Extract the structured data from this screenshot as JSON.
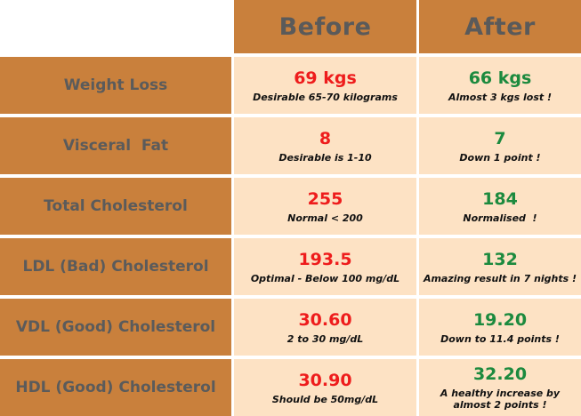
{
  "header": {
    "before": "Before",
    "after": "After"
  },
  "colors": {
    "header_bg": "#c9803c",
    "cell_bg": "#fde2c4",
    "before_value": "#ee1c1c",
    "after_value": "#1c8a3e",
    "label_text": "#5b5b5b"
  },
  "rows": [
    {
      "label": "Weight Loss",
      "before": {
        "value": "69 kgs",
        "note": "Desirable 65-70 kilograms"
      },
      "after": {
        "value": "66 kgs",
        "note": "Almost 3 kgs lost !"
      }
    },
    {
      "label": "Visceral  Fat",
      "before": {
        "value": "8",
        "note": "Desirable is 1-10"
      },
      "after": {
        "value": "7",
        "note": "Down 1 point !"
      }
    },
    {
      "label": "Total Cholesterol",
      "before": {
        "value": "255",
        "note": "Normal < 200"
      },
      "after": {
        "value": "184",
        "note": "Normalised  !"
      }
    },
    {
      "label": "LDL (Bad) Cholesterol",
      "before": {
        "value": "193.5",
        "note": "Optimal - Below 100 mg/dL"
      },
      "after": {
        "value": "132",
        "note": "Amazing result in 7 nights !"
      }
    },
    {
      "label": "VDL (Good) Cholesterol",
      "before": {
        "value": "30.60",
        "note": "2 to 30 mg/dL"
      },
      "after": {
        "value": "19.20",
        "note": "Down to 11.4 points !"
      }
    },
    {
      "label": "HDL (Good) Cholesterol",
      "before": {
        "value": "30.90",
        "note": "Should be 50mg/dL"
      },
      "after": {
        "value": "32.20",
        "note": "A healthy increase by almost 2 points !"
      }
    }
  ]
}
